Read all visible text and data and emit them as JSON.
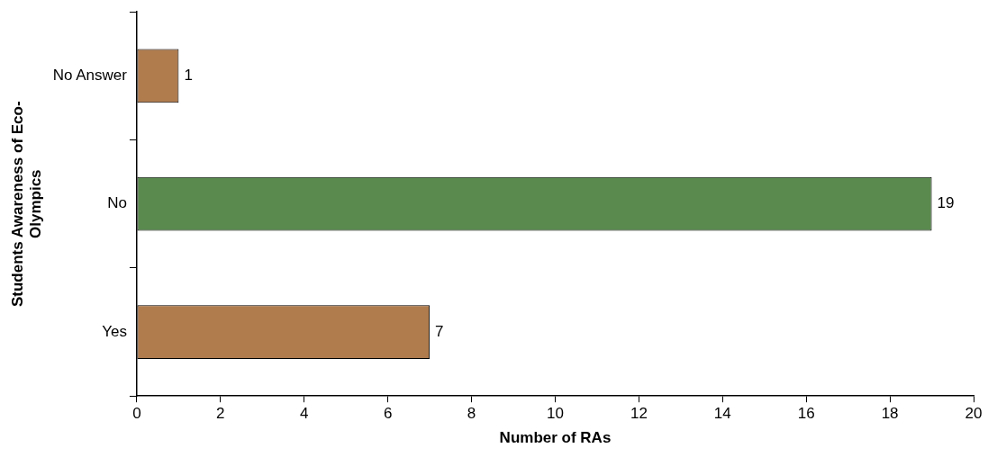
{
  "chart_data": {
    "type": "bar",
    "orientation": "horizontal",
    "categories": [
      "No Answer",
      "No",
      "Yes"
    ],
    "values": [
      1,
      19,
      7
    ],
    "colors": [
      "#b07c4e",
      "#5a8a4e",
      "#b07c4e"
    ],
    "xlabel": "Number of RAs",
    "ylabel": "Students Awareness of Eco-Olympics",
    "xlim": [
      0,
      20
    ],
    "xticks": [
      0,
      2,
      4,
      6,
      8,
      10,
      12,
      14,
      16,
      18,
      20
    ],
    "data_labels": true,
    "grid": false,
    "legend": false
  }
}
